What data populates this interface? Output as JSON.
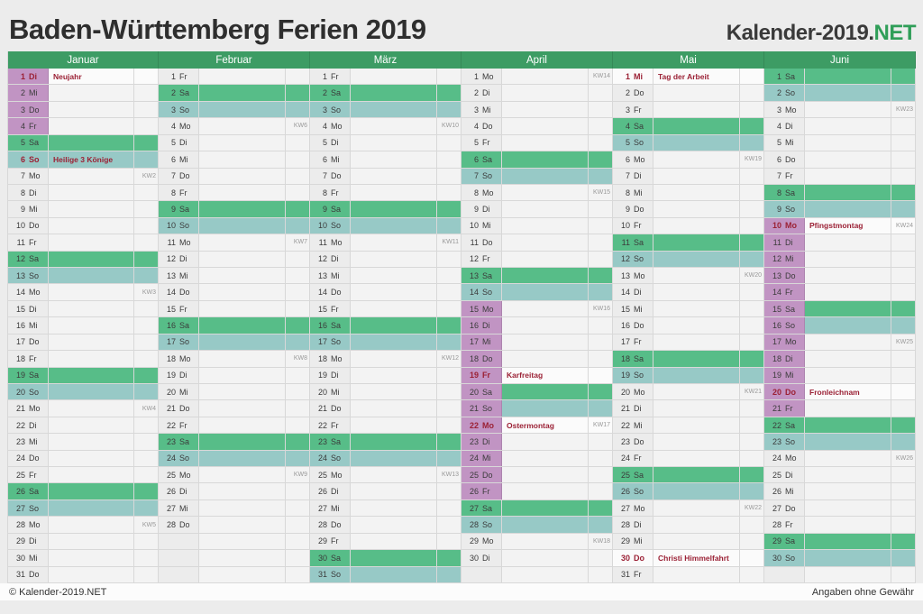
{
  "page": {
    "title": "Baden-Württemberg Ferien 2019"
  },
  "logo": {
    "prefix": "Kalender-2019.",
    "suffix": "NET"
  },
  "footer": {
    "left": "© Kalender-2019.NET",
    "right": "Angaben ohne Gewähr"
  },
  "colors": {
    "headergreen": "#3d9c64",
    "green": "#2f9e58",
    "sat": "#57bd88",
    "sun": "#97c9c6",
    "ferien": "#c194c3",
    "red": "#9b2135",
    "border": "#d8d8d8"
  },
  "months": [
    {
      "name": "Januar",
      "days": [
        {
          "d": 1,
          "w": "Di",
          "t": "F",
          "h": "Neujahr",
          "r": true
        },
        {
          "d": 2,
          "w": "Mi",
          "t": "F"
        },
        {
          "d": 3,
          "w": "Do",
          "t": "F"
        },
        {
          "d": 4,
          "w": "Fr",
          "t": "F"
        },
        {
          "d": 5,
          "w": "Sa",
          "t": "S"
        },
        {
          "d": 6,
          "w": "So",
          "t": "U",
          "h": "Heilige 3 Könige",
          "r": true
        },
        {
          "d": 7,
          "w": "Mo",
          "k": "KW2"
        },
        {
          "d": 8,
          "w": "Di"
        },
        {
          "d": 9,
          "w": "Mi"
        },
        {
          "d": 10,
          "w": "Do"
        },
        {
          "d": 11,
          "w": "Fr"
        },
        {
          "d": 12,
          "w": "Sa",
          "t": "S"
        },
        {
          "d": 13,
          "w": "So",
          "t": "U"
        },
        {
          "d": 14,
          "w": "Mo",
          "k": "KW3"
        },
        {
          "d": 15,
          "w": "Di"
        },
        {
          "d": 16,
          "w": "Mi"
        },
        {
          "d": 17,
          "w": "Do"
        },
        {
          "d": 18,
          "w": "Fr"
        },
        {
          "d": 19,
          "w": "Sa",
          "t": "S"
        },
        {
          "d": 20,
          "w": "So",
          "t": "U"
        },
        {
          "d": 21,
          "w": "Mo",
          "k": "KW4"
        },
        {
          "d": 22,
          "w": "Di"
        },
        {
          "d": 23,
          "w": "Mi"
        },
        {
          "d": 24,
          "w": "Do"
        },
        {
          "d": 25,
          "w": "Fr"
        },
        {
          "d": 26,
          "w": "Sa",
          "t": "S"
        },
        {
          "d": 27,
          "w": "So",
          "t": "U"
        },
        {
          "d": 28,
          "w": "Mo",
          "k": "KW5"
        },
        {
          "d": 29,
          "w": "Di"
        },
        {
          "d": 30,
          "w": "Mi"
        },
        {
          "d": 31,
          "w": "Do"
        }
      ]
    },
    {
      "name": "Februar",
      "days": [
        {
          "d": 1,
          "w": "Fr"
        },
        {
          "d": 2,
          "w": "Sa",
          "t": "S"
        },
        {
          "d": 3,
          "w": "So",
          "t": "U"
        },
        {
          "d": 4,
          "w": "Mo",
          "k": "KW6"
        },
        {
          "d": 5,
          "w": "Di"
        },
        {
          "d": 6,
          "w": "Mi"
        },
        {
          "d": 7,
          "w": "Do"
        },
        {
          "d": 8,
          "w": "Fr"
        },
        {
          "d": 9,
          "w": "Sa",
          "t": "S"
        },
        {
          "d": 10,
          "w": "So",
          "t": "U"
        },
        {
          "d": 11,
          "w": "Mo",
          "k": "KW7"
        },
        {
          "d": 12,
          "w": "Di"
        },
        {
          "d": 13,
          "w": "Mi"
        },
        {
          "d": 14,
          "w": "Do"
        },
        {
          "d": 15,
          "w": "Fr"
        },
        {
          "d": 16,
          "w": "Sa",
          "t": "S"
        },
        {
          "d": 17,
          "w": "So",
          "t": "U"
        },
        {
          "d": 18,
          "w": "Mo",
          "k": "KW8"
        },
        {
          "d": 19,
          "w": "Di"
        },
        {
          "d": 20,
          "w": "Mi"
        },
        {
          "d": 21,
          "w": "Do"
        },
        {
          "d": 22,
          "w": "Fr"
        },
        {
          "d": 23,
          "w": "Sa",
          "t": "S"
        },
        {
          "d": 24,
          "w": "So",
          "t": "U"
        },
        {
          "d": 25,
          "w": "Mo",
          "k": "KW9"
        },
        {
          "d": 26,
          "w": "Di"
        },
        {
          "d": 27,
          "w": "Mi"
        },
        {
          "d": 28,
          "w": "Do"
        }
      ]
    },
    {
      "name": "März",
      "days": [
        {
          "d": 1,
          "w": "Fr"
        },
        {
          "d": 2,
          "w": "Sa",
          "t": "S"
        },
        {
          "d": 3,
          "w": "So",
          "t": "U"
        },
        {
          "d": 4,
          "w": "Mo",
          "k": "KW10"
        },
        {
          "d": 5,
          "w": "Di"
        },
        {
          "d": 6,
          "w": "Mi"
        },
        {
          "d": 7,
          "w": "Do"
        },
        {
          "d": 8,
          "w": "Fr"
        },
        {
          "d": 9,
          "w": "Sa",
          "t": "S"
        },
        {
          "d": 10,
          "w": "So",
          "t": "U"
        },
        {
          "d": 11,
          "w": "Mo",
          "k": "KW11"
        },
        {
          "d": 12,
          "w": "Di"
        },
        {
          "d": 13,
          "w": "Mi"
        },
        {
          "d": 14,
          "w": "Do"
        },
        {
          "d": 15,
          "w": "Fr"
        },
        {
          "d": 16,
          "w": "Sa",
          "t": "S"
        },
        {
          "d": 17,
          "w": "So",
          "t": "U"
        },
        {
          "d": 18,
          "w": "Mo",
          "k": "KW12"
        },
        {
          "d": 19,
          "w": "Di"
        },
        {
          "d": 20,
          "w": "Mi"
        },
        {
          "d": 21,
          "w": "Do"
        },
        {
          "d": 22,
          "w": "Fr"
        },
        {
          "d": 23,
          "w": "Sa",
          "t": "S"
        },
        {
          "d": 24,
          "w": "So",
          "t": "U"
        },
        {
          "d": 25,
          "w": "Mo",
          "k": "KW13"
        },
        {
          "d": 26,
          "w": "Di"
        },
        {
          "d": 27,
          "w": "Mi"
        },
        {
          "d": 28,
          "w": "Do"
        },
        {
          "d": 29,
          "w": "Fr"
        },
        {
          "d": 30,
          "w": "Sa",
          "t": "S"
        },
        {
          "d": 31,
          "w": "So",
          "t": "U"
        }
      ]
    },
    {
      "name": "April",
      "days": [
        {
          "d": 1,
          "w": "Mo",
          "k": "KW14"
        },
        {
          "d": 2,
          "w": "Di"
        },
        {
          "d": 3,
          "w": "Mi"
        },
        {
          "d": 4,
          "w": "Do"
        },
        {
          "d": 5,
          "w": "Fr"
        },
        {
          "d": 6,
          "w": "Sa",
          "t": "S"
        },
        {
          "d": 7,
          "w": "So",
          "t": "U"
        },
        {
          "d": 8,
          "w": "Mo",
          "k": "KW15"
        },
        {
          "d": 9,
          "w": "Di"
        },
        {
          "d": 10,
          "w": "Mi"
        },
        {
          "d": 11,
          "w": "Do"
        },
        {
          "d": 12,
          "w": "Fr"
        },
        {
          "d": 13,
          "w": "Sa",
          "t": "S"
        },
        {
          "d": 14,
          "w": "So",
          "t": "U"
        },
        {
          "d": 15,
          "w": "Mo",
          "t": "F",
          "k": "KW16"
        },
        {
          "d": 16,
          "w": "Di",
          "t": "F"
        },
        {
          "d": 17,
          "w": "Mi",
          "t": "F"
        },
        {
          "d": 18,
          "w": "Do",
          "t": "F"
        },
        {
          "d": 19,
          "w": "Fr",
          "t": "F",
          "h": "Karfreitag",
          "r": true
        },
        {
          "d": 20,
          "w": "Sa",
          "t": "FS"
        },
        {
          "d": 21,
          "w": "So",
          "t": "FU"
        },
        {
          "d": 22,
          "w": "Mo",
          "t": "F",
          "h": "Ostermontag",
          "r": true,
          "k": "KW17"
        },
        {
          "d": 23,
          "w": "Di",
          "t": "F"
        },
        {
          "d": 24,
          "w": "Mi",
          "t": "F"
        },
        {
          "d": 25,
          "w": "Do",
          "t": "F"
        },
        {
          "d": 26,
          "w": "Fr",
          "t": "F"
        },
        {
          "d": 27,
          "w": "Sa",
          "t": "S"
        },
        {
          "d": 28,
          "w": "So",
          "t": "U"
        },
        {
          "d": 29,
          "w": "Mo",
          "k": "KW18"
        },
        {
          "d": 30,
          "w": "Di"
        }
      ]
    },
    {
      "name": "Mai",
      "days": [
        {
          "d": 1,
          "w": "Mi",
          "h": "Tag der Arbeit",
          "r": true
        },
        {
          "d": 2,
          "w": "Do"
        },
        {
          "d": 3,
          "w": "Fr"
        },
        {
          "d": 4,
          "w": "Sa",
          "t": "S"
        },
        {
          "d": 5,
          "w": "So",
          "t": "U"
        },
        {
          "d": 6,
          "w": "Mo",
          "k": "KW19"
        },
        {
          "d": 7,
          "w": "Di"
        },
        {
          "d": 8,
          "w": "Mi"
        },
        {
          "d": 9,
          "w": "Do"
        },
        {
          "d": 10,
          "w": "Fr"
        },
        {
          "d": 11,
          "w": "Sa",
          "t": "S"
        },
        {
          "d": 12,
          "w": "So",
          "t": "U"
        },
        {
          "d": 13,
          "w": "Mo",
          "k": "KW20"
        },
        {
          "d": 14,
          "w": "Di"
        },
        {
          "d": 15,
          "w": "Mi"
        },
        {
          "d": 16,
          "w": "Do"
        },
        {
          "d": 17,
          "w": "Fr"
        },
        {
          "d": 18,
          "w": "Sa",
          "t": "S"
        },
        {
          "d": 19,
          "w": "So",
          "t": "U"
        },
        {
          "d": 20,
          "w": "Mo",
          "k": "KW21"
        },
        {
          "d": 21,
          "w": "Di"
        },
        {
          "d": 22,
          "w": "Mi"
        },
        {
          "d": 23,
          "w": "Do"
        },
        {
          "d": 24,
          "w": "Fr"
        },
        {
          "d": 25,
          "w": "Sa",
          "t": "S"
        },
        {
          "d": 26,
          "w": "So",
          "t": "U"
        },
        {
          "d": 27,
          "w": "Mo",
          "k": "KW22"
        },
        {
          "d": 28,
          "w": "Di"
        },
        {
          "d": 29,
          "w": "Mi"
        },
        {
          "d": 30,
          "w": "Do",
          "h": "Christi Himmelfahrt",
          "r": true
        },
        {
          "d": 31,
          "w": "Fr"
        }
      ]
    },
    {
      "name": "Juni",
      "days": [
        {
          "d": 1,
          "w": "Sa",
          "t": "S"
        },
        {
          "d": 2,
          "w": "So",
          "t": "U"
        },
        {
          "d": 3,
          "w": "Mo",
          "k": "KW23"
        },
        {
          "d": 4,
          "w": "Di"
        },
        {
          "d": 5,
          "w": "Mi"
        },
        {
          "d": 6,
          "w": "Do"
        },
        {
          "d": 7,
          "w": "Fr"
        },
        {
          "d": 8,
          "w": "Sa",
          "t": "S"
        },
        {
          "d": 9,
          "w": "So",
          "t": "U"
        },
        {
          "d": 10,
          "w": "Mo",
          "t": "F",
          "h": "Pfingstmontag",
          "r": true,
          "k": "KW24"
        },
        {
          "d": 11,
          "w": "Di",
          "t": "F"
        },
        {
          "d": 12,
          "w": "Mi",
          "t": "F"
        },
        {
          "d": 13,
          "w": "Do",
          "t": "F"
        },
        {
          "d": 14,
          "w": "Fr",
          "t": "F"
        },
        {
          "d": 15,
          "w": "Sa",
          "t": "FS"
        },
        {
          "d": 16,
          "w": "So",
          "t": "FU"
        },
        {
          "d": 17,
          "w": "Mo",
          "t": "F",
          "k": "KW25"
        },
        {
          "d": 18,
          "w": "Di",
          "t": "F"
        },
        {
          "d": 19,
          "w": "Mi",
          "t": "F"
        },
        {
          "d": 20,
          "w": "Do",
          "t": "F",
          "h": "Fronleichnam",
          "r": true
        },
        {
          "d": 21,
          "w": "Fr",
          "t": "F"
        },
        {
          "d": 22,
          "w": "Sa",
          "t": "S"
        },
        {
          "d": 23,
          "w": "So",
          "t": "U"
        },
        {
          "d": 24,
          "w": "Mo",
          "k": "KW26"
        },
        {
          "d": 25,
          "w": "Di"
        },
        {
          "d": 26,
          "w": "Mi"
        },
        {
          "d": 27,
          "w": "Do"
        },
        {
          "d": 28,
          "w": "Fr"
        },
        {
          "d": 29,
          "w": "Sa",
          "t": "S"
        },
        {
          "d": 30,
          "w": "So",
          "t": "U"
        }
      ]
    }
  ]
}
